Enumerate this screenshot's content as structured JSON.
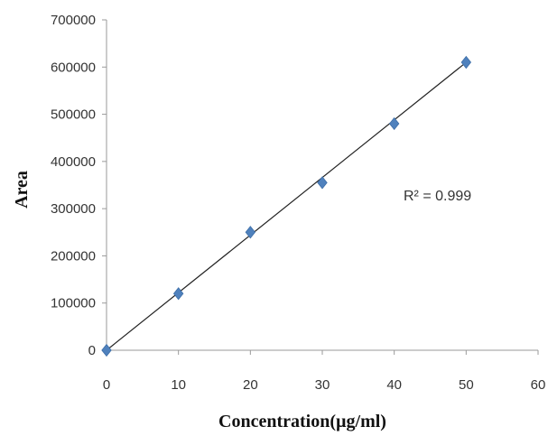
{
  "chart_data": {
    "type": "scatter",
    "xlabel": "Concentration(µg/ml)",
    "ylabel": "Area",
    "xlim": [
      0,
      60
    ],
    "ylim": [
      0,
      700000
    ],
    "xticks": [
      "0",
      "10",
      "20",
      "30",
      "40",
      "50",
      "60"
    ],
    "yticks": [
      "0",
      "100000",
      "200000",
      "300000",
      "400000",
      "500000",
      "600000",
      "700000"
    ],
    "grid": false,
    "legend": "none",
    "series": [
      {
        "marker": "diamond",
        "color": "#4F81BD",
        "points": [
          {
            "x": 0,
            "y": 0
          },
          {
            "x": 10,
            "y": 120000
          },
          {
            "x": 20,
            "y": 250000
          },
          {
            "x": 30,
            "y": 355000
          },
          {
            "x": 40,
            "y": 480000
          },
          {
            "x": 50,
            "y": 610000
          }
        ]
      }
    ],
    "trendline": {
      "type": "linear",
      "color": "#222222",
      "x": [
        0,
        50
      ],
      "y": [
        0,
        610000
      ]
    },
    "annotations": [
      {
        "text": "R² = 0.999"
      }
    ]
  }
}
